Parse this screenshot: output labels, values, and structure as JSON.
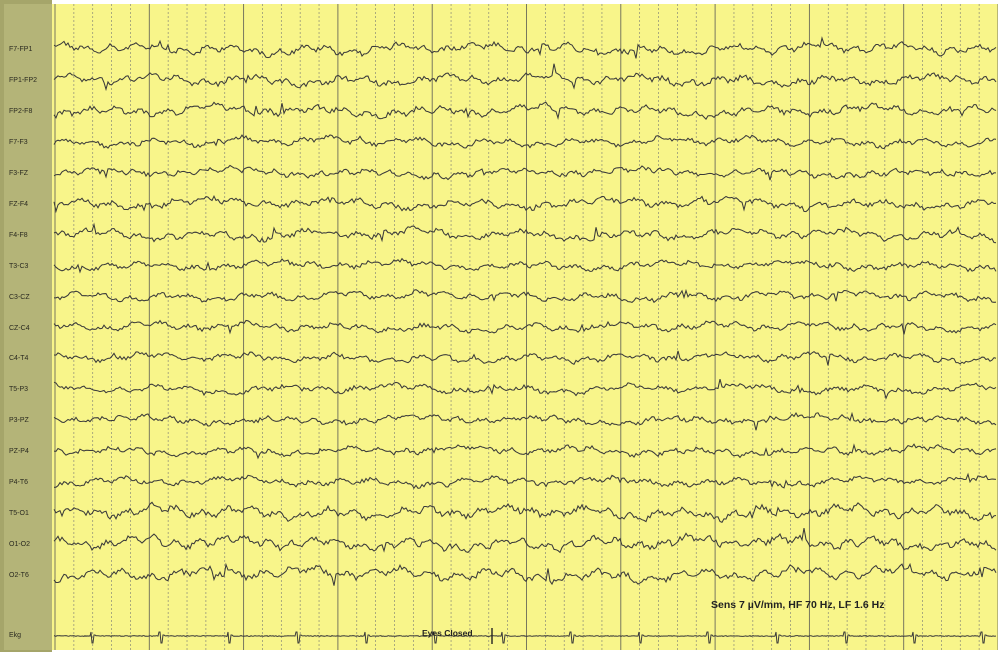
{
  "colors": {
    "background": "#f8f58a",
    "sidebar": "#b4b478",
    "trace": "#3a3a3a",
    "grid_major": "#6a6a5a",
    "grid_minor": "#8a8a78"
  },
  "montage": {
    "channels": [
      "F7-FP1",
      "FP1-FP2",
      "FP2-F8",
      "F7-F3",
      "F3-FZ",
      "FZ-F4",
      "F4-F8",
      "T3-C3",
      "C3-CZ",
      "CZ-C4",
      "C4-T4",
      "T5-P3",
      "P3-PZ",
      "PZ-P4",
      "P4-T6",
      "T5-O1",
      "O1-O2",
      "O2-T6"
    ],
    "ekg_channel": "Ekg"
  },
  "settings": {
    "sensitivity_text": "Sens 7 µV/mm, HF 70 Hz, LF 1.6 Hz"
  },
  "annotations": {
    "event": "Eyes Closed"
  }
}
